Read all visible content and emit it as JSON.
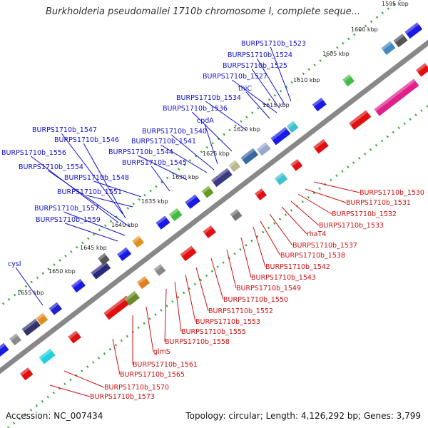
{
  "title": "Burkholderia pseudomallei 1710b chromosome I, complete seque...",
  "accession": "Accession: NC_007434",
  "summary": "Topology: circular; Length: 4,126,292 bp; Genes: 3,799",
  "colors": {
    "forward_label": "#1010cc",
    "reverse_label": "#cc1010",
    "backbone": "#888888",
    "tick": "#33aa33"
  },
  "kbp_ticks": [
    {
      "label": "1595 kbp"
    },
    {
      "label": "1600 kbp"
    },
    {
      "label": "1605 kbp"
    },
    {
      "label": "1610 kbp"
    },
    {
      "label": "1615 kbp"
    },
    {
      "label": "1620 kbp"
    },
    {
      "label": "1625 kbp"
    },
    {
      "label": "1630 kbp"
    },
    {
      "label": "1635 kbp"
    },
    {
      "label": "1640 kbp"
    },
    {
      "label": "1645 kbp"
    },
    {
      "label": "1650 kbp"
    },
    {
      "label": "1655 kbp"
    }
  ],
  "forward_labels": [
    "BURPS1710b_1523",
    "BURPS1710b_1524",
    "BURPS1710b_1525",
    "BURPS1710b_1527",
    "thiC",
    "BURPS1710b_1534",
    "BURPS1710b_1536",
    "cpdA",
    "BURPS1710b_1540",
    "BURPS1710b_1541",
    "BURPS1710b_1547",
    "BURPS1710b_1546",
    "BURPS1710b_1544",
    "BURPS1710b_1556",
    "BURPS1710b_1545",
    "BURPS1710b_1554",
    "BURPS1710b_1548",
    "BURPS1710b_1551",
    "BURPS1710b_1557",
    "BURPS1710b_1559",
    "cysI"
  ],
  "reverse_labels": [
    "BURPS1710b_1530",
    "BURPS1710b_1531",
    "BURPS1710b_1532",
    "BURPS1710b_1533",
    "rhaT4",
    "BURPS1710b_1537",
    "BURPS1710b_1538",
    "BURPS1710b_1542",
    "BURPS1710b_1543",
    "BURPS1710b_1549",
    "BURPS1710b_1550",
    "BURPS1710b_1552",
    "BURPS1710b_1553",
    "BURPS1710b_1555",
    "BURPS1710b_1558",
    "glmS",
    "BURPS1710b_1561",
    "BURPS1710b_1565",
    "BURPS1710b_1570",
    "BURPS1710b_1573"
  ]
}
